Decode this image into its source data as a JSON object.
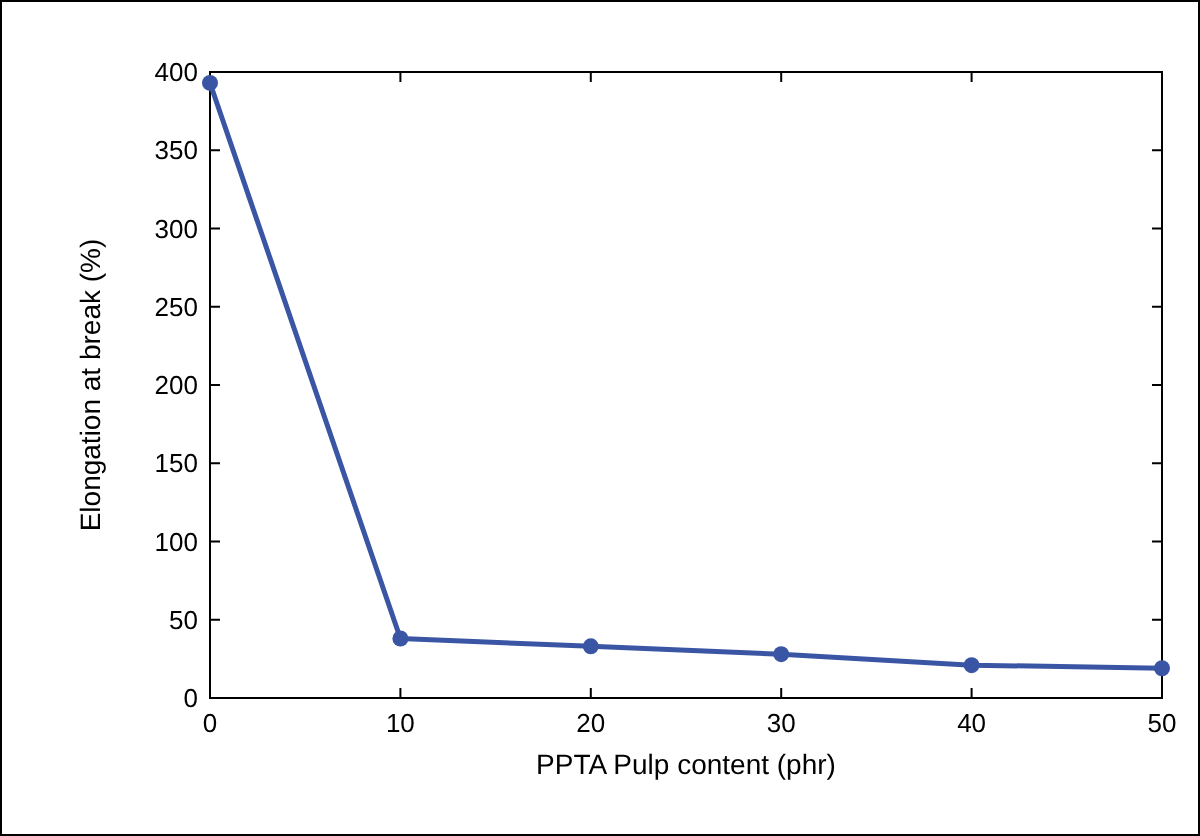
{
  "chart_data": {
    "type": "line",
    "xlabel": "PPTA Pulp content (phr)",
    "ylabel": "Elongation at break (%)",
    "x": [
      0,
      10,
      20,
      30,
      40,
      50
    ],
    "series": [
      {
        "color": "#3a55a4",
        "values": [
          393,
          38,
          33,
          28,
          21,
          19
        ]
      }
    ],
    "xlim": [
      0,
      50
    ],
    "xticks": [
      0,
      10,
      20,
      30,
      40,
      50
    ],
    "ylim": [
      0,
      400
    ],
    "yticks": [
      0,
      50,
      100,
      150,
      200,
      250,
      300,
      350,
      400
    ],
    "grid": false,
    "marker": "circle",
    "line_style": "solid"
  }
}
